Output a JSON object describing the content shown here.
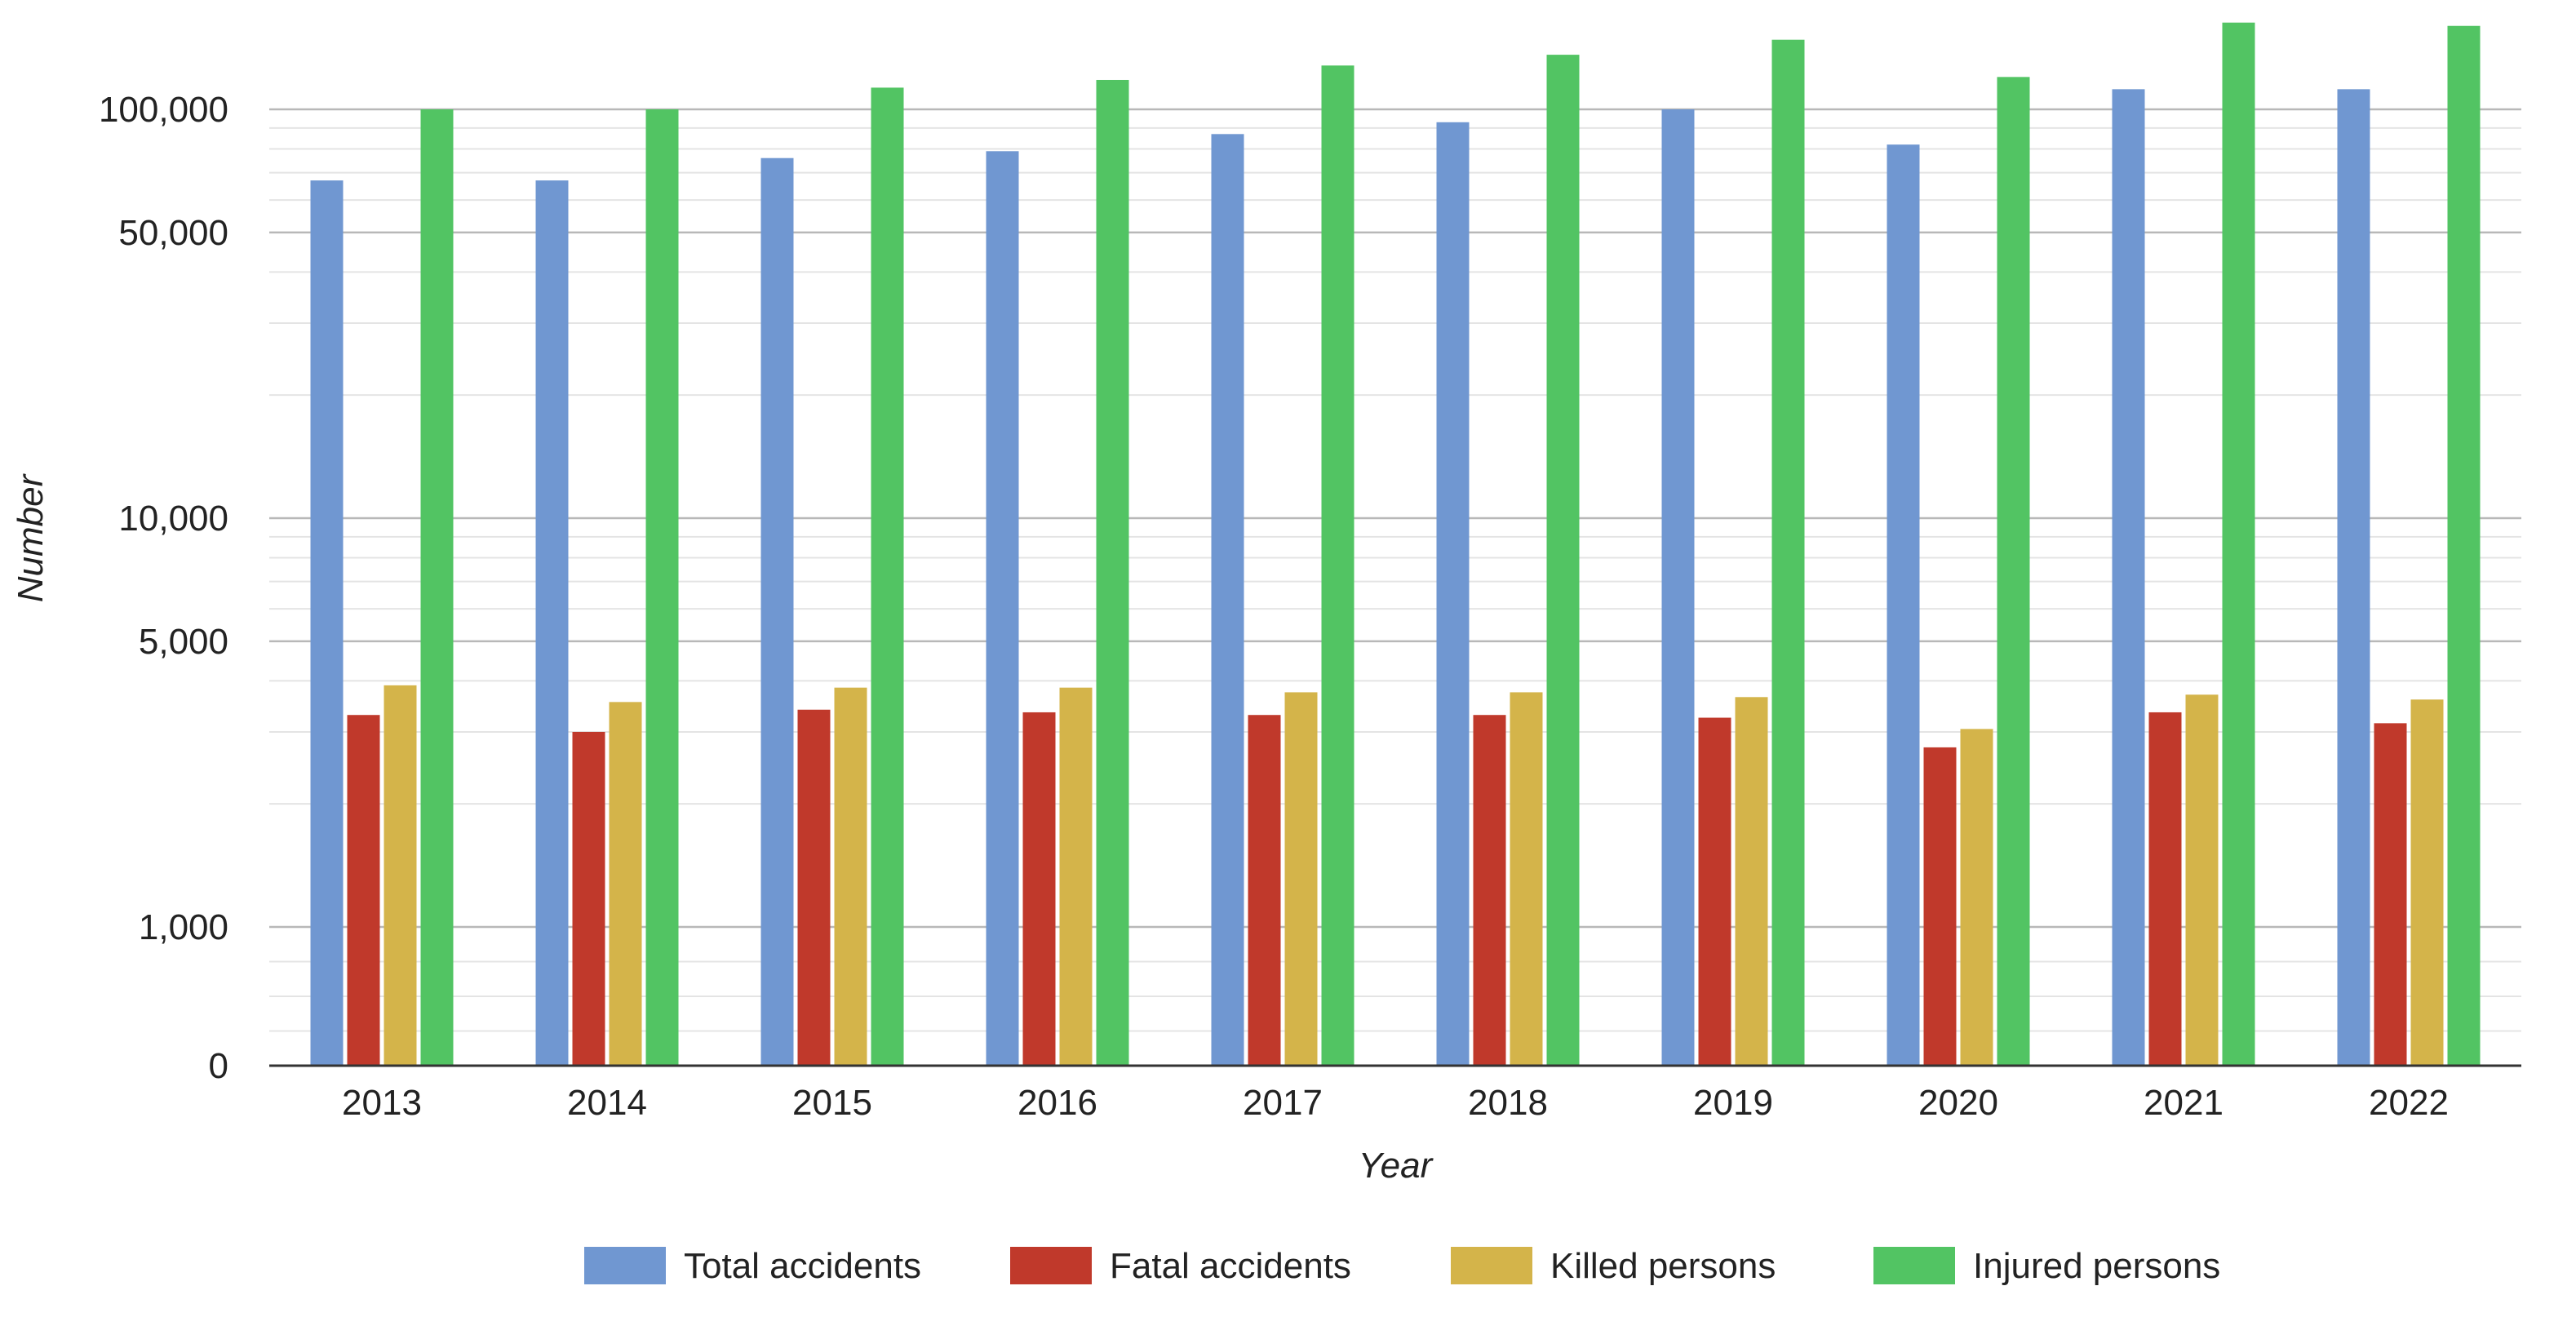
{
  "chart_data": {
    "type": "bar",
    "xlabel": "Year",
    "ylabel": "Number",
    "y_scale": "log (with 0 baseline)",
    "y_ticks": [
      0,
      1000,
      5000,
      10000,
      50000,
      100000
    ],
    "y_tick_labels": [
      "0",
      "1,000",
      "5,000",
      "10,000",
      "50,000",
      "100,000"
    ],
    "ylim": [
      0,
      200000
    ],
    "grid": true,
    "legend_position": "bottom",
    "categories": [
      "2013",
      "2014",
      "2015",
      "2016",
      "2017",
      "2018",
      "2019",
      "2020",
      "2021",
      "2022"
    ],
    "series": [
      {
        "name": "Total accidents",
        "color": "#7097d1",
        "values": [
          67000,
          67000,
          76000,
          79000,
          87000,
          93000,
          100000,
          82000,
          112000,
          112000
        ]
      },
      {
        "name": "Fatal accidents",
        "color": "#c0392b",
        "values": [
          3300,
          3000,
          3400,
          3350,
          3300,
          3300,
          3250,
          2750,
          3350,
          3150
        ]
      },
      {
        "name": "Killed persons",
        "color": "#d4b44a",
        "values": [
          3900,
          3550,
          3850,
          3850,
          3750,
          3750,
          3650,
          3050,
          3700,
          3600
        ]
      },
      {
        "name": "Injured persons",
        "color": "#52c463",
        "values": [
          100000,
          100000,
          113000,
          118000,
          128000,
          136000,
          148000,
          120000,
          163000,
          160000
        ]
      }
    ]
  }
}
